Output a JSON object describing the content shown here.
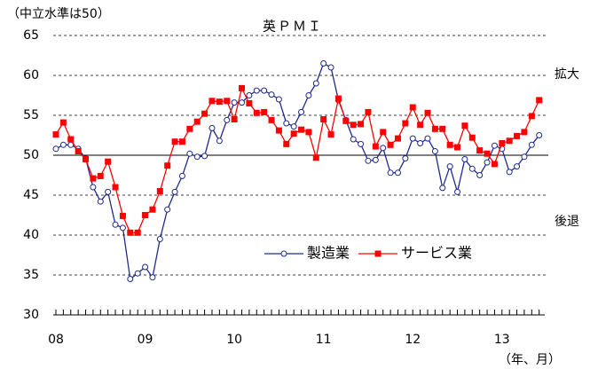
{
  "chart_data": {
    "type": "line",
    "title": "英ＰＭＩ",
    "note": "（中立水準は50）",
    "xlabel": "（年、月）",
    "annotations": [
      "拡大",
      "後退"
    ],
    "categories": [
      "08",
      null,
      null,
      null,
      null,
      null,
      null,
      null,
      null,
      null,
      null,
      null,
      "09",
      null,
      null,
      null,
      null,
      null,
      null,
      null,
      null,
      null,
      null,
      null,
      "10",
      null,
      null,
      null,
      null,
      null,
      null,
      null,
      null,
      null,
      null,
      null,
      "11",
      null,
      null,
      null,
      null,
      null,
      null,
      null,
      null,
      null,
      null,
      null,
      "12",
      null,
      null,
      null,
      null,
      null,
      null,
      null,
      null,
      null,
      null,
      null,
      "13",
      null,
      null,
      null,
      null,
      null
    ],
    "series": [
      {
        "name": "製造業",
        "color": "#1f2a8c",
        "marker": "circle",
        "values": [
          50.8,
          51.3,
          51.3,
          50.8,
          49.6,
          46.0,
          44.2,
          45.4,
          41.3,
          40.9,
          34.5,
          35.2,
          36.0,
          34.7,
          39.5,
          43.2,
          45.4,
          47.4,
          50.2,
          49.8,
          49.9,
          53.4,
          51.8,
          54.4,
          56.6,
          56.6,
          57.5,
          58.1,
          58.1,
          57.6,
          57.0,
          54.0,
          53.6,
          55.4,
          57.5,
          59.0,
          61.5,
          61.0,
          56.9,
          54.4,
          52.0,
          51.4,
          49.3,
          49.4,
          50.9,
          47.8,
          47.8,
          49.6,
          52.1,
          51.5,
          52.1,
          50.5,
          45.9,
          48.6,
          45.4,
          49.5,
          48.3,
          47.5,
          49.1,
          51.2,
          50.8,
          47.9,
          48.6,
          49.8,
          51.3,
          52.5
        ]
      },
      {
        "name": "サービス業",
        "color": "#ff0000",
        "marker": "square",
        "values": [
          52.6,
          54.1,
          52.0,
          50.5,
          49.5,
          47.1,
          47.4,
          49.2,
          46.0,
          42.4,
          40.3,
          40.3,
          42.5,
          43.2,
          45.5,
          48.7,
          51.7,
          51.7,
          53.3,
          54.2,
          55.2,
          56.8,
          56.7,
          56.8,
          54.5,
          58.4,
          56.5,
          55.3,
          55.4,
          54.4,
          53.1,
          51.4,
          52.7,
          53.2,
          52.9,
          49.7,
          54.5,
          52.6,
          57.1,
          54.3,
          53.8,
          53.9,
          55.4,
          51.1,
          52.9,
          51.3,
          52.1,
          54.0,
          56.0,
          53.8,
          55.3,
          53.3,
          53.3,
          51.3,
          51.0,
          53.7,
          52.2,
          50.6,
          50.2,
          48.9,
          51.5,
          51.8,
          52.4,
          52.9,
          54.9,
          56.9
        ]
      }
    ],
    "ylim": [
      30,
      65
    ],
    "yticks": [
      30,
      35,
      40,
      45,
      50,
      55,
      60,
      65
    ],
    "grid": true,
    "refline": 50,
    "legend": "lower right"
  }
}
